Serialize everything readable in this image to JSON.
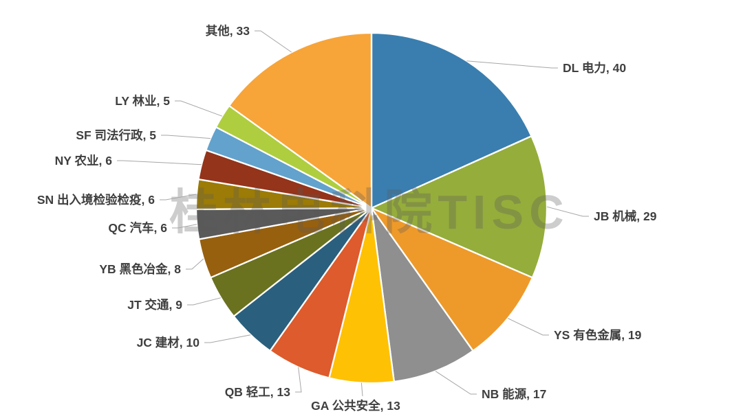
{
  "watermark": "桂林电科院TISC",
  "style": {
    "background": "#FFFFFF",
    "label_text_color": "#3F3F3F",
    "leader_line_color": "#A6A6A6",
    "slice_border_color": "#FFFFFF",
    "watermark_color": "rgba(89,89,89,0.30)"
  },
  "chart_data": {
    "type": "pie",
    "title": "",
    "total": 219,
    "start_angle_deg": 0,
    "direction": "clockwise",
    "legend_position": "none",
    "data_labels": "category-and-value-outside-with-leader-lines",
    "slices": [
      {
        "id": "dl",
        "label": "DL 电力",
        "value": 40,
        "color": "#3A7EAF"
      },
      {
        "id": "jb",
        "label": "JB 机械",
        "value": 29,
        "color": "#95AD3B"
      },
      {
        "id": "ys",
        "label": "YS 有色金属",
        "value": 19,
        "color": "#EE9A2A"
      },
      {
        "id": "nb",
        "label": "NB 能源",
        "value": 17,
        "color": "#8F8F8F"
      },
      {
        "id": "ga",
        "label": "GA 公共安全",
        "value": 13,
        "color": "#FFC103"
      },
      {
        "id": "qb",
        "label": "QB 轻工",
        "value": 13,
        "color": "#DD5B2C"
      },
      {
        "id": "jc",
        "label": "JC 建材",
        "value": 10,
        "color": "#2B5F7E"
      },
      {
        "id": "jt",
        "label": "JT 交通",
        "value": 9,
        "color": "#6A7220"
      },
      {
        "id": "yb",
        "label": "YB 黑色冶金",
        "value": 8,
        "color": "#97600F"
      },
      {
        "id": "qc",
        "label": "QC 汽车",
        "value": 6,
        "color": "#5A5A5A"
      },
      {
        "id": "sn",
        "label": "SN 出入境检验检疫",
        "value": 6,
        "color": "#9C7B06"
      },
      {
        "id": "ny",
        "label": "NY 农业",
        "value": 6,
        "color": "#93341B"
      },
      {
        "id": "sf",
        "label": "SF 司法行政",
        "value": 5,
        "color": "#62A2CD"
      },
      {
        "id": "ly",
        "label": "LY 林业",
        "value": 5,
        "color": "#AECE3F"
      },
      {
        "id": "other",
        "label": "其他",
        "value": 33,
        "color": "#F7A439"
      }
    ]
  }
}
